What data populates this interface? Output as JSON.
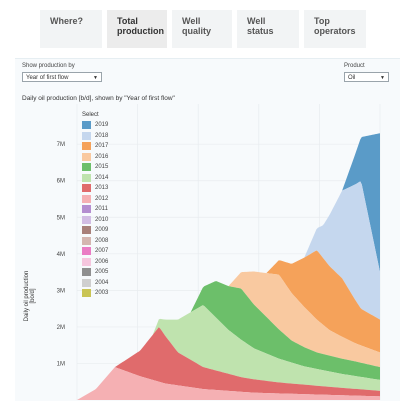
{
  "tabs": [
    {
      "label": "Where?",
      "active": false
    },
    {
      "label": "Total production",
      "active": true
    },
    {
      "label": "Well quality",
      "active": false
    },
    {
      "label": "Well status",
      "active": false
    },
    {
      "label": "Top operators",
      "active": false
    }
  ],
  "controls": {
    "show_by_label": "Show production by",
    "show_by_value": "Year of first flow",
    "product_label": "Product",
    "product_value": "Oil"
  },
  "chart_data": {
    "type": "area",
    "stacked": true,
    "title": "Daily oil production [b/d], shown by \"Year of first flow\"",
    "xlabel": "",
    "ylabel": "Daily oil production [bo/d]",
    "y_tick_labels": [
      "1M",
      "2M",
      "3M",
      "4M",
      "5M",
      "6M",
      "7M"
    ],
    "y_tick_values": [
      1000000,
      2000000,
      3000000,
      4000000,
      5000000,
      6000000,
      7000000
    ],
    "ylim": [
      0,
      8100000
    ],
    "x_index_range": [
      0,
      48
    ],
    "grid": true,
    "legend_title": "Select",
    "legend_position": "top-left",
    "series": [
      {
        "name": "2019",
        "color": "#5a9bc8",
        "x": [
          42,
          45,
          48
        ],
        "values": [
          0,
          1200000,
          3800000
        ]
      },
      {
        "name": "2018",
        "color": "#c5d7ee",
        "x": [
          36,
          39,
          42,
          45,
          48
        ],
        "values": [
          0,
          900000,
          2400000,
          3500000,
          1300000
        ]
      },
      {
        "name": "2017",
        "color": "#f5a25a",
        "x": [
          30,
          34,
          38,
          42,
          45,
          48
        ],
        "values": [
          0,
          800000,
          1900000,
          1600000,
          1000000,
          900000
        ]
      },
      {
        "name": "2016",
        "color": "#f9c9a0",
        "x": [
          24,
          28,
          32,
          36,
          40,
          44,
          48
        ],
        "values": [
          0,
          900000,
          1500000,
          1100000,
          700000,
          500000,
          400000
        ]
      },
      {
        "name": "2015",
        "color": "#6cbf6a",
        "x": [
          18,
          22,
          26,
          30,
          34,
          38,
          44,
          48
        ],
        "values": [
          0,
          1000000,
          1400000,
          1000000,
          600000,
          450000,
          400000,
          350000
        ]
      },
      {
        "name": "2014",
        "color": "#bfe3ae",
        "x": [
          12,
          16,
          20,
          24,
          28,
          32,
          36,
          42,
          48
        ],
        "values": [
          0,
          900000,
          1700000,
          1200000,
          850000,
          650000,
          500000,
          380000,
          300000
        ]
      },
      {
        "name": "2013",
        "color": "#e06b6c",
        "x": [
          6,
          10,
          13,
          16,
          20,
          26,
          32,
          40,
          48
        ],
        "values": [
          0,
          700000,
          1500000,
          900000,
          600000,
          400000,
          300000,
          220000,
          150000
        ]
      },
      {
        "name": "2012",
        "color": "#f5b0b3",
        "x": [
          0,
          3,
          6,
          10,
          14,
          20,
          28,
          38,
          48
        ],
        "values": [
          0,
          300000,
          900000,
          650000,
          450000,
          300000,
          200000,
          150000,
          100000
        ]
      },
      {
        "name": "2011",
        "color": "#b48ed0"
      },
      {
        "name": "2010",
        "color": "#d2bde4"
      },
      {
        "name": "2009",
        "color": "#a8807a"
      },
      {
        "name": "2008",
        "color": "#d4b6b0"
      },
      {
        "name": "2007",
        "color": "#ea7cc4"
      },
      {
        "name": "2006",
        "color": "#f6c6de"
      },
      {
        "name": "2005",
        "color": "#8f8f8f"
      },
      {
        "name": "2004",
        "color": "#cfcfcf"
      },
      {
        "name": "2003",
        "color": "#c9c454"
      }
    ]
  }
}
